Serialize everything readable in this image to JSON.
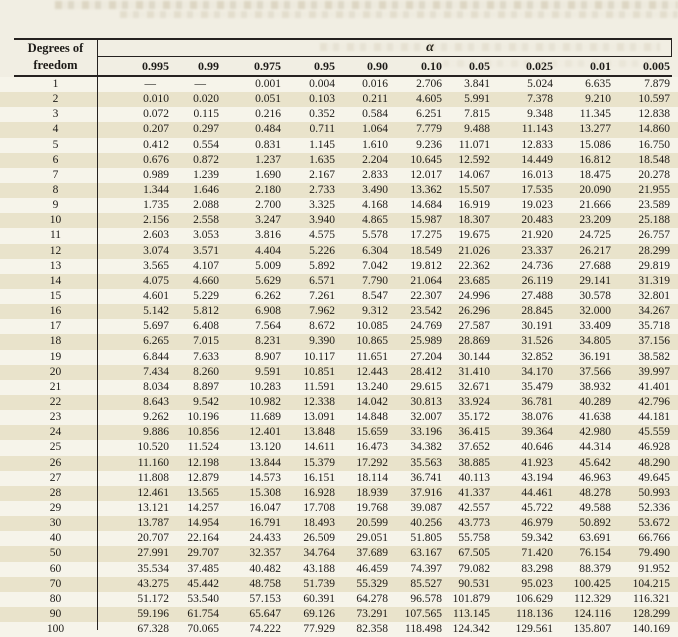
{
  "table": {
    "row_header_title": [
      "Degrees of",
      "freedom"
    ],
    "alpha_label": "α",
    "columns": [
      "0.995",
      "0.99",
      "0.975",
      "0.95",
      "0.90",
      "0.10",
      "0.05",
      "0.025",
      "0.01",
      "0.005"
    ],
    "rows": [
      {
        "df": "1",
        "values": [
          "—",
          "—",
          "0.001",
          "0.004",
          "0.016",
          "2.706",
          "3.841",
          "5.024",
          "6.635",
          "7.879"
        ]
      },
      {
        "df": "2",
        "values": [
          "0.010",
          "0.020",
          "0.051",
          "0.103",
          "0.211",
          "4.605",
          "5.991",
          "7.378",
          "9.210",
          "10.597"
        ]
      },
      {
        "df": "3",
        "values": [
          "0.072",
          "0.115",
          "0.216",
          "0.352",
          "0.584",
          "6.251",
          "7.815",
          "9.348",
          "11.345",
          "12.838"
        ]
      },
      {
        "df": "4",
        "values": [
          "0.207",
          "0.297",
          "0.484",
          "0.711",
          "1.064",
          "7.779",
          "9.488",
          "11.143",
          "13.277",
          "14.860"
        ]
      },
      {
        "df": "5",
        "values": [
          "0.412",
          "0.554",
          "0.831",
          "1.145",
          "1.610",
          "9.236",
          "11.071",
          "12.833",
          "15.086",
          "16.750"
        ]
      },
      {
        "df": "6",
        "values": [
          "0.676",
          "0.872",
          "1.237",
          "1.635",
          "2.204",
          "10.645",
          "12.592",
          "14.449",
          "16.812",
          "18.548"
        ]
      },
      {
        "df": "7",
        "values": [
          "0.989",
          "1.239",
          "1.690",
          "2.167",
          "2.833",
          "12.017",
          "14.067",
          "16.013",
          "18.475",
          "20.278"
        ]
      },
      {
        "df": "8",
        "values": [
          "1.344",
          "1.646",
          "2.180",
          "2.733",
          "3.490",
          "13.362",
          "15.507",
          "17.535",
          "20.090",
          "21.955"
        ]
      },
      {
        "df": "9",
        "values": [
          "1.735",
          "2.088",
          "2.700",
          "3.325",
          "4.168",
          "14.684",
          "16.919",
          "19.023",
          "21.666",
          "23.589"
        ]
      },
      {
        "df": "10",
        "values": [
          "2.156",
          "2.558",
          "3.247",
          "3.940",
          "4.865",
          "15.987",
          "18.307",
          "20.483",
          "23.209",
          "25.188"
        ]
      },
      {
        "df": "11",
        "values": [
          "2.603",
          "3.053",
          "3.816",
          "4.575",
          "5.578",
          "17.275",
          "19.675",
          "21.920",
          "24.725",
          "26.757"
        ]
      },
      {
        "df": "12",
        "values": [
          "3.074",
          "3.571",
          "4.404",
          "5.226",
          "6.304",
          "18.549",
          "21.026",
          "23.337",
          "26.217",
          "28.299"
        ]
      },
      {
        "df": "13",
        "values": [
          "3.565",
          "4.107",
          "5.009",
          "5.892",
          "7.042",
          "19.812",
          "22.362",
          "24.736",
          "27.688",
          "29.819"
        ]
      },
      {
        "df": "14",
        "values": [
          "4.075",
          "4.660",
          "5.629",
          "6.571",
          "7.790",
          "21.064",
          "23.685",
          "26.119",
          "29.141",
          "31.319"
        ]
      },
      {
        "df": "15",
        "values": [
          "4.601",
          "5.229",
          "6.262",
          "7.261",
          "8.547",
          "22.307",
          "24.996",
          "27.488",
          "30.578",
          "32.801"
        ]
      },
      {
        "df": "16",
        "values": [
          "5.142",
          "5.812",
          "6.908",
          "7.962",
          "9.312",
          "23.542",
          "26.296",
          "28.845",
          "32.000",
          "34.267"
        ]
      },
      {
        "df": "17",
        "values": [
          "5.697",
          "6.408",
          "7.564",
          "8.672",
          "10.085",
          "24.769",
          "27.587",
          "30.191",
          "33.409",
          "35.718"
        ]
      },
      {
        "df": "18",
        "values": [
          "6.265",
          "7.015",
          "8.231",
          "9.390",
          "10.865",
          "25.989",
          "28.869",
          "31.526",
          "34.805",
          "37.156"
        ]
      },
      {
        "df": "19",
        "values": [
          "6.844",
          "7.633",
          "8.907",
          "10.117",
          "11.651",
          "27.204",
          "30.144",
          "32.852",
          "36.191",
          "38.582"
        ]
      },
      {
        "df": "20",
        "values": [
          "7.434",
          "8.260",
          "9.591",
          "10.851",
          "12.443",
          "28.412",
          "31.410",
          "34.170",
          "37.566",
          "39.997"
        ]
      },
      {
        "df": "21",
        "values": [
          "8.034",
          "8.897",
          "10.283",
          "11.591",
          "13.240",
          "29.615",
          "32.671",
          "35.479",
          "38.932",
          "41.401"
        ]
      },
      {
        "df": "22",
        "values": [
          "8.643",
          "9.542",
          "10.982",
          "12.338",
          "14.042",
          "30.813",
          "33.924",
          "36.781",
          "40.289",
          "42.796"
        ]
      },
      {
        "df": "23",
        "values": [
          "9.262",
          "10.196",
          "11.689",
          "13.091",
          "14.848",
          "32.007",
          "35.172",
          "38.076",
          "41.638",
          "44.181"
        ]
      },
      {
        "df": "24",
        "values": [
          "9.886",
          "10.856",
          "12.401",
          "13.848",
          "15.659",
          "33.196",
          "36.415",
          "39.364",
          "42.980",
          "45.559"
        ]
      },
      {
        "df": "25",
        "values": [
          "10.520",
          "11.524",
          "13.120",
          "14.611",
          "16.473",
          "34.382",
          "37.652",
          "40.646",
          "44.314",
          "46.928"
        ]
      },
      {
        "df": "26",
        "values": [
          "11.160",
          "12.198",
          "13.844",
          "15.379",
          "17.292",
          "35.563",
          "38.885",
          "41.923",
          "45.642",
          "48.290"
        ]
      },
      {
        "df": "27",
        "values": [
          "11.808",
          "12.879",
          "14.573",
          "16.151",
          "18.114",
          "36.741",
          "40.113",
          "43.194",
          "46.963",
          "49.645"
        ]
      },
      {
        "df": "28",
        "values": [
          "12.461",
          "13.565",
          "15.308",
          "16.928",
          "18.939",
          "37.916",
          "41.337",
          "44.461",
          "48.278",
          "50.993"
        ]
      },
      {
        "df": "29",
        "values": [
          "13.121",
          "14.257",
          "16.047",
          "17.708",
          "19.768",
          "39.087",
          "42.557",
          "45.722",
          "49.588",
          "52.336"
        ]
      },
      {
        "df": "30",
        "values": [
          "13.787",
          "14.954",
          "16.791",
          "18.493",
          "20.599",
          "40.256",
          "43.773",
          "46.979",
          "50.892",
          "53.672"
        ]
      },
      {
        "df": "40",
        "values": [
          "20.707",
          "22.164",
          "24.433",
          "26.509",
          "29.051",
          "51.805",
          "55.758",
          "59.342",
          "63.691",
          "66.766"
        ]
      },
      {
        "df": "50",
        "values": [
          "27.991",
          "29.707",
          "32.357",
          "34.764",
          "37.689",
          "63.167",
          "67.505",
          "71.420",
          "76.154",
          "79.490"
        ]
      },
      {
        "df": "60",
        "values": [
          "35.534",
          "37.485",
          "40.482",
          "43.188",
          "46.459",
          "74.397",
          "79.082",
          "83.298",
          "88.379",
          "91.952"
        ]
      },
      {
        "df": "70",
        "values": [
          "43.275",
          "45.442",
          "48.758",
          "51.739",
          "55.329",
          "85.527",
          "90.531",
          "95.023",
          "100.425",
          "104.215"
        ]
      },
      {
        "df": "80",
        "values": [
          "51.172",
          "53.540",
          "57.153",
          "60.391",
          "64.278",
          "96.578",
          "101.879",
          "106.629",
          "112.329",
          "116.321"
        ]
      },
      {
        "df": "90",
        "values": [
          "59.196",
          "61.754",
          "65.647",
          "69.126",
          "73.291",
          "107.565",
          "113.145",
          "118.136",
          "124.116",
          "128.299"
        ]
      },
      {
        "df": "100",
        "values": [
          "67.328",
          "70.065",
          "74.222",
          "77.929",
          "82.358",
          "118.498",
          "124.342",
          "129.561",
          "135.807",
          "140.169"
        ],
        "partially_cut_off": true
      }
    ]
  },
  "colors": {
    "page_background": "#f1eee3",
    "row_plain": "#f6f4ea",
    "row_shaded": "#e9e3cb",
    "rule": "#262220",
    "text": "#1d1b18"
  }
}
